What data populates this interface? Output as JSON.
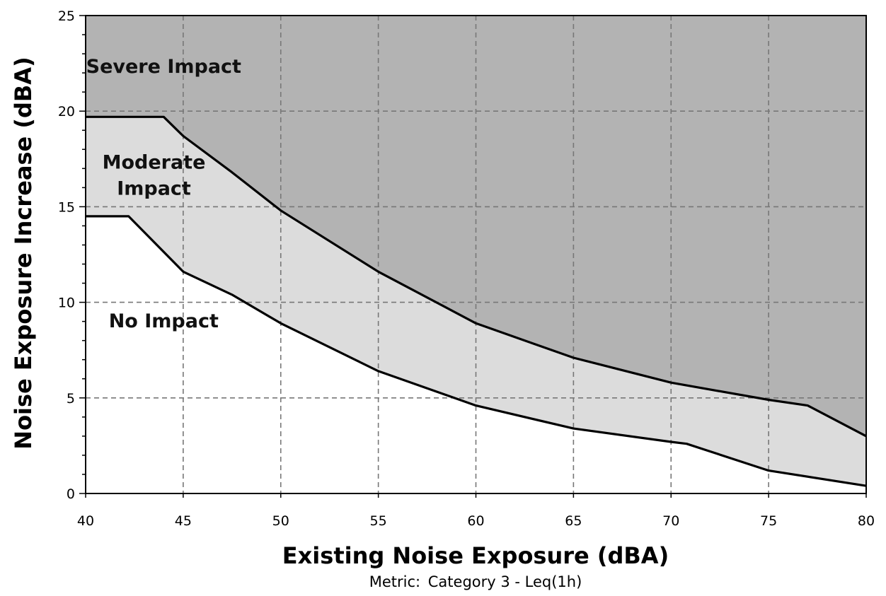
{
  "chart_data": {
    "type": "area",
    "xlabel": "Existing Noise Exposure (dBA)",
    "ylabel": "Noise Exposure Increase (dBA)",
    "xlim": [
      40,
      80
    ],
    "ylim": [
      0,
      25
    ],
    "xticks": [
      40,
      45,
      50,
      55,
      60,
      65,
      70,
      75,
      80
    ],
    "yticks": [
      0,
      5,
      10,
      15,
      20,
      25
    ],
    "grid": true,
    "metric": {
      "label": "Metric:",
      "value": "Category 3 - Leq(1h)"
    },
    "series": [
      {
        "name": "Severe Impact",
        "x": [
          40,
          44,
          45,
          47.5,
          50,
          55,
          60,
          65,
          70,
          75,
          77,
          80
        ],
        "values": [
          19.7,
          19.7,
          18.7,
          16.8,
          14.8,
          11.6,
          8.9,
          7.1,
          5.8,
          4.9,
          4.6,
          3.0
        ]
      },
      {
        "name": "Moderate Impact",
        "x": [
          40,
          42.2,
          45,
          47.5,
          50,
          55,
          60,
          65,
          70,
          70.8,
          75,
          80
        ],
        "values": [
          14.5,
          14.5,
          11.6,
          10.4,
          8.9,
          6.4,
          4.6,
          3.4,
          2.7,
          2.6,
          1.2,
          0.4
        ]
      }
    ],
    "regions": [
      {
        "name": "Severe Impact",
        "color": "#b3b3b3"
      },
      {
        "name": "Moderate Impact",
        "color": "#dcdcdc"
      },
      {
        "name": "No Impact",
        "color": "#ffffff"
      }
    ],
    "region_labels": [
      {
        "lines": [
          "Severe Impact"
        ],
        "x": 44.0,
        "y": 22.0
      },
      {
        "lines": [
          "Moderate",
          "Impact"
        ],
        "x": 43.5,
        "y": 17.0
      },
      {
        "lines": [
          "No Impact"
        ],
        "x": 44.0,
        "y": 8.7
      }
    ]
  }
}
